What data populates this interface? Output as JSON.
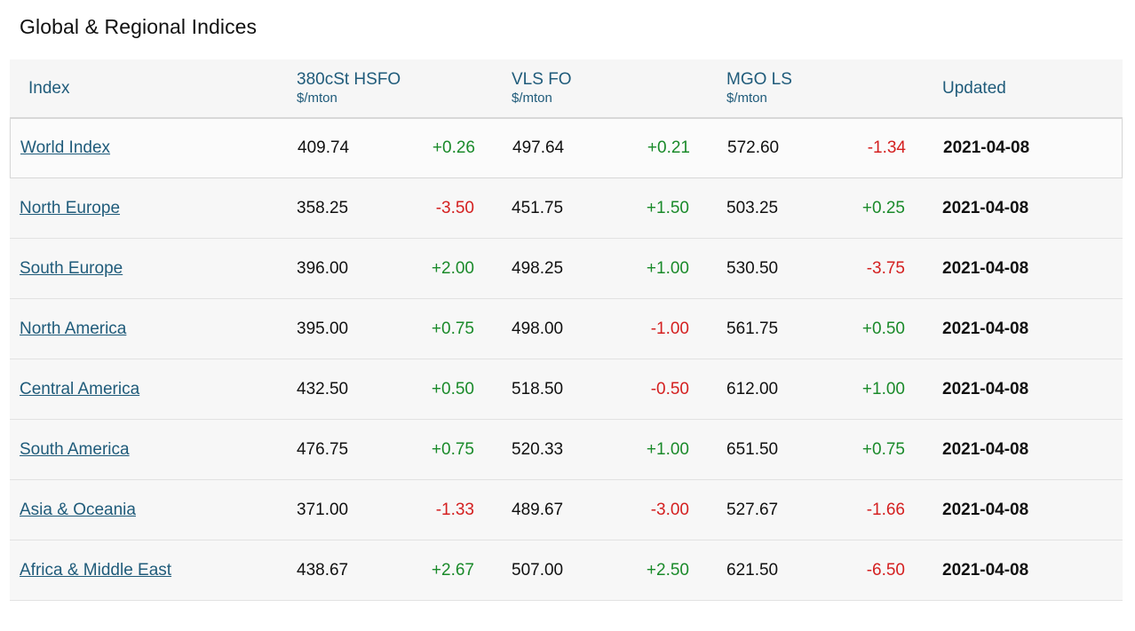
{
  "page": {
    "title": "Global & Regional Indices"
  },
  "table": {
    "headers": {
      "index": "Index",
      "hsfo": {
        "label": "380cSt HSFO",
        "unit": "$/mton"
      },
      "vlsfo": {
        "label": "VLS FO",
        "unit": "$/mton"
      },
      "mgo": {
        "label": "MGO LS",
        "unit": "$/mton"
      },
      "updated": "Updated"
    },
    "rows": [
      {
        "name": "World Index",
        "hsfo": "409.74",
        "hsfo_chg": "+0.26",
        "vlsfo": "497.64",
        "vlsfo_chg": "+0.21",
        "mgo": "572.60",
        "mgo_chg": "-1.34",
        "updated": "2021-04-08"
      },
      {
        "name": "North Europe",
        "hsfo": "358.25",
        "hsfo_chg": "-3.50",
        "vlsfo": "451.75",
        "vlsfo_chg": "+1.50",
        "mgo": "503.25",
        "mgo_chg": "+0.25",
        "updated": "2021-04-08"
      },
      {
        "name": "South Europe",
        "hsfo": "396.00",
        "hsfo_chg": "+2.00",
        "vlsfo": "498.25",
        "vlsfo_chg": "+1.00",
        "mgo": "530.50",
        "mgo_chg": "-3.75",
        "updated": "2021-04-08"
      },
      {
        "name": "North America",
        "hsfo": "395.00",
        "hsfo_chg": "+0.75",
        "vlsfo": "498.00",
        "vlsfo_chg": "-1.00",
        "mgo": "561.75",
        "mgo_chg": "+0.50",
        "updated": "2021-04-08"
      },
      {
        "name": "Central America",
        "hsfo": "432.50",
        "hsfo_chg": "+0.50",
        "vlsfo": "518.50",
        "vlsfo_chg": "-0.50",
        "mgo": "612.00",
        "mgo_chg": "+1.00",
        "updated": "2021-04-08"
      },
      {
        "name": "South America",
        "hsfo": "476.75",
        "hsfo_chg": "+0.75",
        "vlsfo": "520.33",
        "vlsfo_chg": "+1.00",
        "mgo": "651.50",
        "mgo_chg": "+0.75",
        "updated": "2021-04-08"
      },
      {
        "name": "Asia & Oceania",
        "hsfo": "371.00",
        "hsfo_chg": "-1.33",
        "vlsfo": "489.67",
        "vlsfo_chg": "-3.00",
        "mgo": "527.67",
        "mgo_chg": "-1.66",
        "updated": "2021-04-08"
      },
      {
        "name": "Africa & Middle East",
        "hsfo": "438.67",
        "hsfo_chg": "+2.67",
        "vlsfo": "507.00",
        "vlsfo_chg": "+2.50",
        "mgo": "621.50",
        "mgo_chg": "-6.50",
        "updated": "2021-04-08"
      }
    ]
  },
  "colors": {
    "link": "#1f5b7a",
    "positive": "#1a8a2a",
    "negative": "#d42020"
  }
}
